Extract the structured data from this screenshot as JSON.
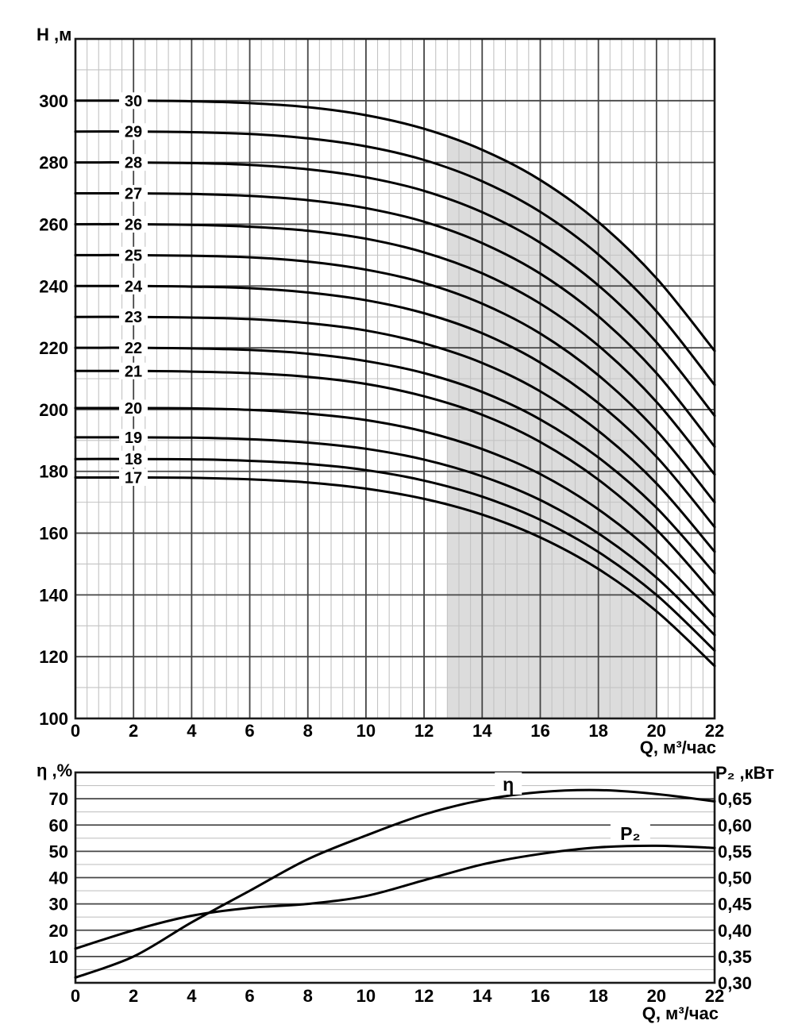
{
  "colors": {
    "curve": "#000000",
    "grid_major": "#464646",
    "grid_minor": "#c3c3c3",
    "frame": "#1a1a1a",
    "zone_fill": "#dcdcdc",
    "text": "#000000",
    "background": "#ffffff"
  },
  "chart_data": [
    {
      "id": "head_capacity",
      "type": "line",
      "title": "",
      "x_axis": {
        "label": "Q, м³/час",
        "min": 0,
        "max": 22,
        "major_step": 2,
        "minor_step": 0.4,
        "tick_labels": [
          "0",
          "2",
          "4",
          "6",
          "8",
          "10",
          "12",
          "14",
          "16",
          "18",
          "20",
          "22"
        ],
        "tick_values": [
          0,
          2,
          4,
          6,
          8,
          10,
          12,
          14,
          16,
          18,
          20,
          22
        ]
      },
      "y_axis": {
        "label": "H ,м",
        "min": 100,
        "max": 320,
        "major_step": 20,
        "minor_step": 10,
        "tick_labels": [
          "300",
          "280",
          "260",
          "240",
          "220",
          "200",
          "180",
          "160",
          "140",
          "120",
          "100"
        ],
        "tick_values": [
          300,
          280,
          260,
          240,
          220,
          200,
          180,
          160,
          140,
          120,
          100
        ]
      },
      "operating_zone": {
        "q_start": 12.8,
        "q_end": 20,
        "top_boundary": [
          [
            12.8,
            288.2
          ],
          [
            14,
            284.1
          ],
          [
            15,
            279.5
          ],
          [
            16,
            274.3
          ],
          [
            17,
            267.8
          ],
          [
            18,
            260.7
          ],
          [
            19,
            252.0
          ],
          [
            20,
            242.5
          ]
        ]
      },
      "q_samples": [
        0,
        2,
        4,
        6,
        8,
        10,
        12,
        14,
        16,
        18,
        20,
        22
      ],
      "series": [
        {
          "label": "30",
          "stages": 30,
          "h_values": [
            300,
            300,
            299.8,
            299.2,
            297.9,
            295.3,
            290.9,
            284.1,
            274.3,
            260.7,
            242.5,
            219
          ]
        },
        {
          "label": "29",
          "stages": 29,
          "h_values": [
            290,
            290,
            289.8,
            289.2,
            287.8,
            285.2,
            280.8,
            273.9,
            264,
            250.2,
            231.8,
            208
          ]
        },
        {
          "label": "28",
          "stages": 28,
          "h_values": [
            280,
            280,
            279.8,
            279.2,
            277.8,
            275.2,
            270.8,
            263.9,
            254,
            240.2,
            221.8,
            198
          ]
        },
        {
          "label": "27",
          "stages": 27,
          "h_values": [
            270,
            270,
            269.8,
            269.2,
            267.8,
            265.2,
            260.8,
            253.9,
            244,
            230.2,
            211.8,
            188
          ]
        },
        {
          "label": "26",
          "stages": 26,
          "h_values": [
            260,
            260,
            259.8,
            259.2,
            257.9,
            255.3,
            250.9,
            244.1,
            234.3,
            220.7,
            202.5,
            179
          ]
        },
        {
          "label": "25",
          "stages": 25,
          "h_values": [
            250,
            250,
            249.8,
            249.3,
            247.9,
            245.3,
            241,
            234.3,
            224.6,
            211.1,
            193.2,
            170
          ]
        },
        {
          "label": "24",
          "stages": 24,
          "h_values": [
            240,
            240,
            239.8,
            239.3,
            237.9,
            235.4,
            231.2,
            224.7,
            215.2,
            202.1,
            184.7,
            162
          ]
        },
        {
          "label": "23",
          "stages": 23,
          "h_values": [
            230,
            230,
            229.8,
            229.3,
            228,
            225.6,
            221.4,
            215.1,
            205.9,
            193.1,
            176.1,
            154
          ]
        },
        {
          "label": "22",
          "stages": 22,
          "h_values": [
            220,
            220,
            219.8,
            219.3,
            218.1,
            215.7,
            211.8,
            205.7,
            196.8,
            184.5,
            168.2,
            147
          ]
        },
        {
          "label": "21",
          "stages": 21,
          "h_values": [
            212.5,
            212.5,
            212.3,
            211.8,
            210.6,
            208.3,
            204.3,
            198.3,
            189.5,
            177.3,
            161.1,
            140
          ]
        },
        {
          "label": "20",
          "stages": 20,
          "h_values": [
            200.5,
            200.5,
            200.4,
            199.9,
            198.7,
            196.6,
            192.9,
            187.2,
            179.1,
            167.7,
            152.6,
            133
          ]
        },
        {
          "label": "19",
          "stages": 19,
          "h_values": [
            191,
            191,
            190.9,
            190.4,
            189.3,
            187.3,
            183.8,
            178.4,
            170.7,
            159.9,
            145.6,
            127
          ]
        },
        {
          "label": "18",
          "stages": 18,
          "h_values": [
            184,
            184,
            183.9,
            183.4,
            182.4,
            180.4,
            177,
            171.8,
            164.3,
            153.9,
            140,
            122
          ]
        },
        {
          "label": "17",
          "stages": 17,
          "h_values": [
            178,
            178,
            177.9,
            177.4,
            176.4,
            174.4,
            171.1,
            166,
            158.6,
            148.4,
            134.7,
            117
          ]
        }
      ],
      "series_label_q": 2
    },
    {
      "id": "efficiency_power",
      "type": "line",
      "title": "",
      "x_axis": {
        "label": "Q, м³/час",
        "min": 0,
        "max": 22,
        "major_step": 2,
        "minor_step": 0.4,
        "tick_labels": [
          "0",
          "2",
          "4",
          "6",
          "8",
          "10",
          "12",
          "14",
          "16",
          "18",
          "20",
          "22"
        ],
        "tick_values": [
          0,
          2,
          4,
          6,
          8,
          10,
          12,
          14,
          16,
          18,
          20,
          22
        ]
      },
      "left_axis": {
        "label": "η ,%",
        "min": 0,
        "max": 80,
        "major_step": 10,
        "minor_step": 5,
        "tick_labels": [
          "70",
          "60",
          "50",
          "40",
          "30",
          "20",
          "10"
        ],
        "tick_values": [
          70,
          60,
          50,
          40,
          30,
          20,
          10
        ]
      },
      "right_axis": {
        "label": "P₂ ,кВт",
        "min": 0.3,
        "max": 0.7,
        "major_step": 0.05,
        "tick_labels": [
          "0,65",
          "0,60",
          "0,55",
          "0,50",
          "0,45",
          "0,40",
          "0,35",
          "0,30"
        ],
        "tick_values": [
          0.65,
          0.6,
          0.55,
          0.5,
          0.45,
          0.4,
          0.35,
          0.3
        ]
      },
      "series": [
        {
          "label": "η",
          "axis": "left",
          "points": [
            [
              0,
              2
            ],
            [
              2,
              10
            ],
            [
              4,
              23
            ],
            [
              6,
              35
            ],
            [
              8,
              47
            ],
            [
              10,
              56
            ],
            [
              12,
              64
            ],
            [
              14,
              69.5
            ],
            [
              16,
              72.5
            ],
            [
              18,
              73.3
            ],
            [
              20,
              71.8
            ],
            [
              22,
              69
            ]
          ],
          "label_pos": {
            "q": 14.9,
            "value": 75.8
          }
        },
        {
          "label": "P₂",
          "axis": "right",
          "points": [
            [
              0,
              0.365
            ],
            [
              2,
              0.4
            ],
            [
              4,
              0.4275
            ],
            [
              6,
              0.4425
            ],
            [
              8,
              0.45
            ],
            [
              10,
              0.465
            ],
            [
              12,
              0.495
            ],
            [
              14,
              0.525
            ],
            [
              16,
              0.545
            ],
            [
              18,
              0.5575
            ],
            [
              20,
              0.5605
            ],
            [
              22,
              0.5565
            ]
          ],
          "label_pos": {
            "q": 19.1,
            "value": 0.5855
          }
        }
      ]
    }
  ]
}
